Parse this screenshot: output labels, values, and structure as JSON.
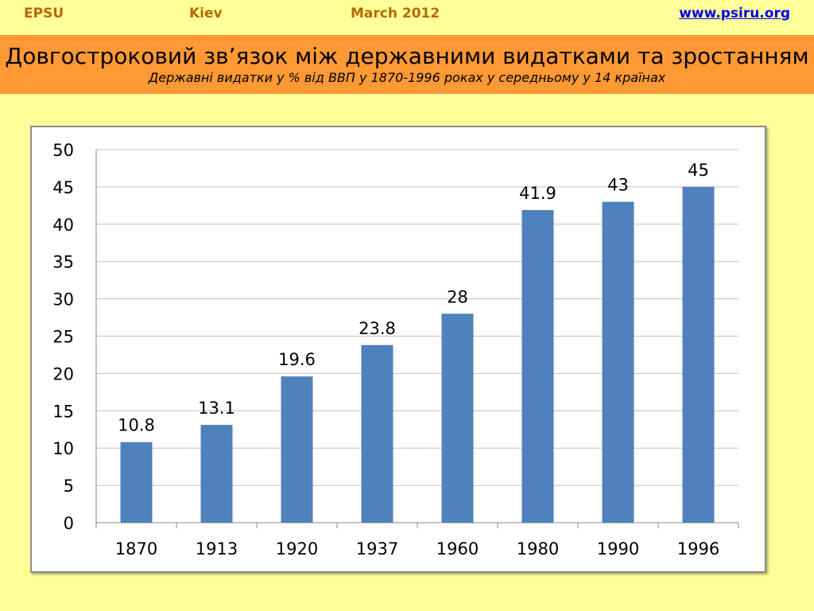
{
  "header": {
    "org": "EPSU",
    "city": "Kiev",
    "date": "March 2012",
    "website": "www.psiru.org"
  },
  "banner": {
    "title": "Довгостроковий зв’язок між державними видатками та зростанням",
    "subtitle": "Державні видатки у % від ВВП у 1870-1996 роках у середньому у 14 країнах"
  },
  "chart_data": {
    "type": "bar",
    "categories": [
      "1870",
      "1913",
      "1920",
      "1937",
      "1960",
      "1980",
      "1990",
      "1996"
    ],
    "values": [
      10.8,
      13.1,
      19.6,
      23.8,
      28,
      41.9,
      43,
      45
    ],
    "data_labels": [
      "10.8",
      "13.1",
      "19.6",
      "23.8",
      "28",
      "41.9",
      "43",
      "45"
    ],
    "ylim": [
      0,
      50
    ],
    "y_ticks": [
      "0",
      "5",
      "10",
      "15",
      "20",
      "25",
      "30",
      "35",
      "40",
      "45",
      "50"
    ],
    "grid": true,
    "legend": "none",
    "bar_color": "#4f81bd",
    "grid_color": "#c0c0c0"
  }
}
